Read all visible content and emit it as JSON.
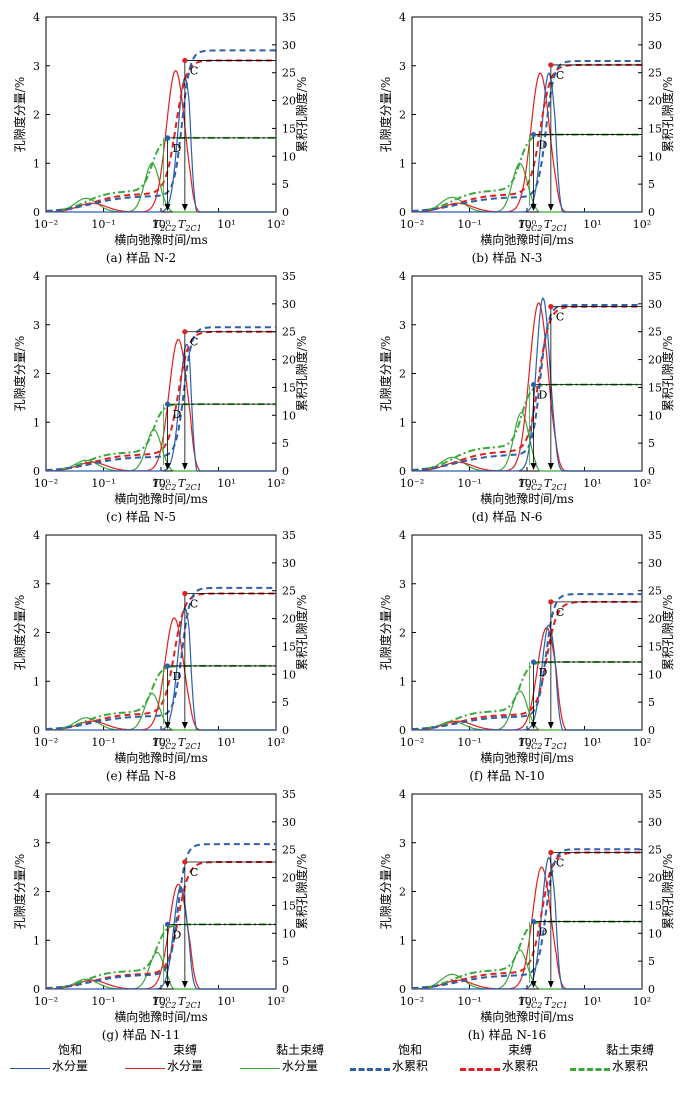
{
  "figure": {
    "left_axis_label": "孔隙度分量/%",
    "right_axis_label": "累积孔隙度/%",
    "x_axis_label": "横向弛豫时间/ms",
    "x_ticks": [
      "10⁻²",
      "10⁻¹",
      "10⁰",
      "10¹",
      "10²"
    ],
    "y_left_ticks": [
      "0",
      "1",
      "2",
      "3",
      "4"
    ],
    "y_right_ticks": [
      "0",
      "5",
      "10",
      "15",
      "20",
      "25",
      "30",
      "35"
    ],
    "marker_c": "C",
    "marker_d": "D",
    "t2c2_label": "T2C2",
    "t2c1_label": "T2C1"
  },
  "legend": [
    {
      "line1": "饱和",
      "line2": "水分量",
      "color": "#2e5fa8",
      "style": "solid"
    },
    {
      "line1": "束缚",
      "line2": "水分量",
      "color": "#e02020",
      "style": "solid"
    },
    {
      "line1": "黏土束缚",
      "line2": "水分量",
      "color": "#3aa83a",
      "style": "solid"
    },
    {
      "line1": "饱和",
      "line2": "水累积",
      "color": "#2e5fa8",
      "style": "dashed"
    },
    {
      "line1": "束缚",
      "line2": "水累积",
      "color": "#e02020",
      "style": "dashed"
    },
    {
      "line1": "黏土束缚",
      "line2": "水累积",
      "color": "#3aa83a",
      "style": "dashdot"
    }
  ],
  "chart_data": [
    {
      "type": "line",
      "title": "(a) 样品 N-2",
      "xlabel": "横向弛豫时间/ms",
      "ylabel": "孔隙度分量/%",
      "y2label": "累积孔隙度/%",
      "xlim": [
        0.01,
        100
      ],
      "ylim": [
        0,
        4
      ],
      "y2lim": [
        0,
        35
      ],
      "xscale": "log",
      "sat_peak": 2.75,
      "sat_center": 2.6,
      "bound_peak": 2.9,
      "bound_center": 1.8,
      "clay_peak": 1.0,
      "clay_center": 0.7,
      "clay_small_peak": 0.28,
      "sat_total": 29.0,
      "bound_total": 27.2,
      "clay_total": 13.3,
      "t2c2": 1.3,
      "t2c1": 2.6
    },
    {
      "type": "line",
      "title": "(b) 样品 N-3",
      "xlabel": "横向弛豫时间/ms",
      "ylabel": "孔隙度分量/%",
      "y2label": "累积孔隙度/%",
      "xlim": [
        0.01,
        100
      ],
      "ylim": [
        0,
        4
      ],
      "y2lim": [
        0,
        35
      ],
      "xscale": "log",
      "sat_peak": 2.85,
      "sat_center": 2.4,
      "bound_peak": 2.85,
      "bound_center": 1.7,
      "clay_peak": 1.0,
      "clay_center": 0.75,
      "clay_small_peak": 0.3,
      "sat_total": 27.1,
      "bound_total": 26.4,
      "clay_total": 13.9,
      "t2c2": 1.3,
      "t2c1": 2.6
    },
    {
      "type": "line",
      "title": "(c) 样品 N-5",
      "xlabel": "横向弛豫时间/ms",
      "ylabel": "孔隙度分量/%",
      "y2label": "累积孔隙度/%",
      "xlim": [
        0.01,
        100
      ],
      "ylim": [
        0,
        4
      ],
      "y2lim": [
        0,
        35
      ],
      "xscale": "log",
      "sat_peak": 2.6,
      "sat_center": 2.8,
      "bound_peak": 2.7,
      "bound_center": 2.0,
      "clay_peak": 0.85,
      "clay_center": 0.75,
      "clay_small_peak": 0.22,
      "sat_total": 25.8,
      "bound_total": 25.0,
      "clay_total": 12.0,
      "t2c2": 1.3,
      "t2c1": 2.6
    },
    {
      "type": "line",
      "title": "(d) 样品 N-6",
      "xlabel": "横向弛豫时间/ms",
      "ylabel": "孔隙度分量/%",
      "y2label": "累积孔隙度/%",
      "xlim": [
        0.01,
        100
      ],
      "ylim": [
        0,
        4
      ],
      "y2lim": [
        0,
        35
      ],
      "xscale": "log",
      "sat_peak": 3.55,
      "sat_center": 1.9,
      "bound_peak": 3.45,
      "bound_center": 1.6,
      "clay_peak": 1.2,
      "clay_center": 0.8,
      "clay_small_peak": 0.28,
      "sat_total": 29.8,
      "bound_total": 29.5,
      "clay_total": 15.5,
      "t2c2": 1.3,
      "t2c1": 2.6
    },
    {
      "type": "line",
      "title": "(e) 样品 N-8",
      "xlabel": "横向弛豫时间/ms",
      "ylabel": "孔隙度分量/%",
      "y2label": "累积孔隙度/%",
      "xlim": [
        0.01,
        100
      ],
      "ylim": [
        0,
        4
      ],
      "y2lim": [
        0,
        35
      ],
      "xscale": "log",
      "sat_peak": 2.5,
      "sat_center": 2.6,
      "bound_peak": 2.3,
      "bound_center": 1.7,
      "clay_peak": 0.75,
      "clay_center": 0.7,
      "clay_small_peak": 0.25,
      "sat_total": 25.5,
      "bound_total": 24.5,
      "clay_total": 11.5,
      "t2c2": 1.3,
      "t2c1": 2.6
    },
    {
      "type": "line",
      "title": "(f) 样品 N-10",
      "xlabel": "横向弛豫时间/ms",
      "ylabel": "孔隙度分量/%",
      "y2label": "累积孔隙度/%",
      "xlim": [
        0.01,
        100
      ],
      "ylim": [
        0,
        4
      ],
      "y2lim": [
        0,
        35
      ],
      "xscale": "log",
      "sat_peak": 2.15,
      "sat_center": 2.4,
      "bound_peak": 2.1,
      "bound_center": 2.2,
      "clay_peak": 0.8,
      "clay_center": 0.75,
      "clay_small_peak": 0.18,
      "sat_total": 24.4,
      "bound_total": 23.0,
      "clay_total": 12.2,
      "t2c2": 1.3,
      "t2c1": 2.6
    },
    {
      "type": "line",
      "title": "(g) 样品 N-11",
      "xlabel": "横向弛豫时间/ms",
      "ylabel": "孔隙度分量/%",
      "y2label": "累积孔隙度/%",
      "xlim": [
        0.01,
        100
      ],
      "ylim": [
        0,
        4
      ],
      "y2lim": [
        0,
        35
      ],
      "xscale": "log",
      "sat_peak": 2.1,
      "sat_center": 2.2,
      "bound_peak": 2.15,
      "bound_center": 2.0,
      "clay_peak": 0.75,
      "clay_center": 0.85,
      "clay_small_peak": 0.2,
      "sat_total": 26.0,
      "bound_total": 22.8,
      "clay_total": 11.6,
      "t2c2": 1.3,
      "t2c1": 2.6
    },
    {
      "type": "line",
      "title": "(h) 样品 N-16",
      "xlabel": "横向弛豫时间/ms",
      "ylabel": "孔隙度分量/%",
      "y2label": "累积孔隙度/%",
      "xlim": [
        0.01,
        100
      ],
      "ylim": [
        0,
        4
      ],
      "y2lim": [
        0,
        35
      ],
      "xscale": "log",
      "sat_peak": 2.7,
      "sat_center": 2.4,
      "bound_peak": 2.5,
      "bound_center": 1.8,
      "clay_peak": 0.8,
      "clay_center": 0.75,
      "clay_small_peak": 0.3,
      "sat_total": 25.1,
      "bound_total": 24.5,
      "clay_total": 12.1,
      "t2c2": 1.3,
      "t2c1": 2.6
    }
  ]
}
